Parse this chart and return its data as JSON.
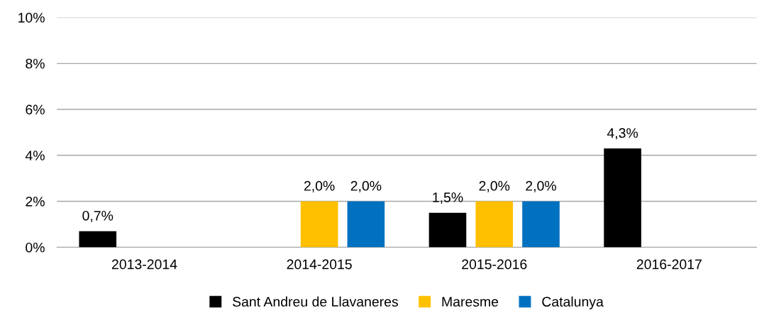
{
  "chart_data": {
    "type": "bar",
    "categories": [
      "2013-2014",
      "2014-2015",
      "2015-2016",
      "2016-2017"
    ],
    "series": [
      {
        "name": "Sant Andreu de Llavaneres",
        "color": "#000000",
        "values": [
          0.7,
          null,
          1.5,
          4.3
        ],
        "value_labels": [
          "0,7%",
          null,
          "1,5%",
          "4,3%"
        ]
      },
      {
        "name": "Maresme",
        "color": "#ffc000",
        "values": [
          null,
          2.0,
          2.0,
          null
        ],
        "value_labels": [
          null,
          "2,0%",
          "2,0%",
          null
        ]
      },
      {
        "name": "Catalunya",
        "color": "#0070c0",
        "values": [
          null,
          2.0,
          2.0,
          null
        ],
        "value_labels": [
          null,
          "2,0%",
          "2,0%",
          null
        ]
      }
    ],
    "ylim": [
      0,
      10
    ],
    "yticks": [
      {
        "value": 0,
        "label": "0%"
      },
      {
        "value": 2,
        "label": "2%"
      },
      {
        "value": 4,
        "label": "4%"
      },
      {
        "value": 6,
        "label": "6%"
      },
      {
        "value": 8,
        "label": "8%"
      },
      {
        "value": 10,
        "label": "10%"
      }
    ],
    "grid": "y",
    "legend": "bottom"
  }
}
